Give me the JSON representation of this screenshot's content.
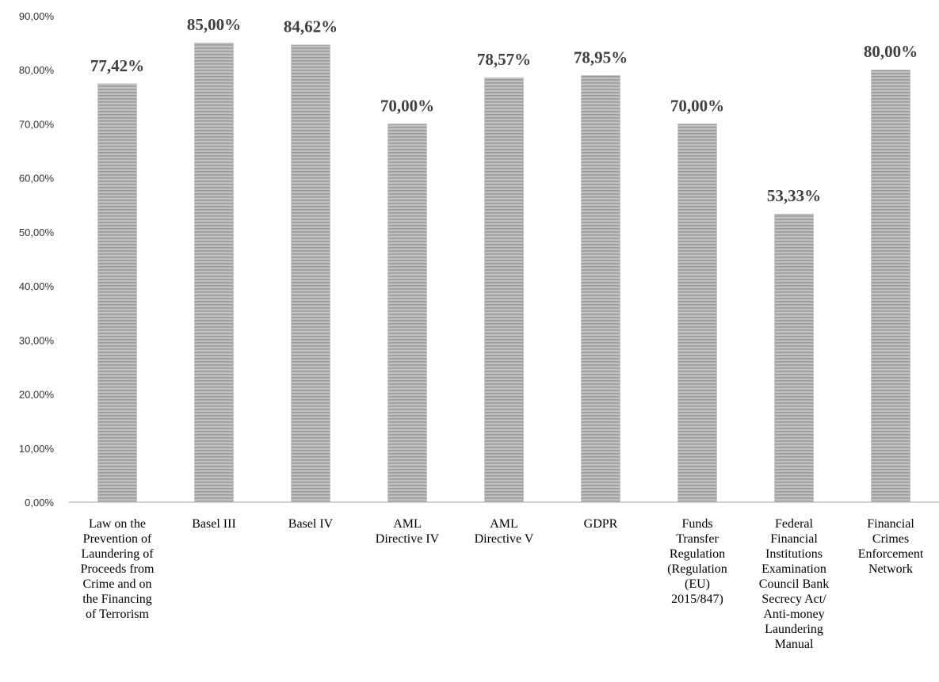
{
  "chart_data": {
    "type": "bar",
    "title": "",
    "xlabel": "",
    "ylabel": "",
    "ylim": [
      0,
      90
    ],
    "yticks": [
      "0,00%",
      "10,00%",
      "20,00%",
      "30,00%",
      "40,00%",
      "50,00%",
      "60,00%",
      "70,00%",
      "80,00%",
      "90,00%"
    ],
    "grid": false,
    "bar_color": "#c0c0c0",
    "bar_stripe_color": "#9a9a9a",
    "categories": [
      [
        "Law on the",
        "Prevention of",
        "Laundering of",
        "Proceeds from",
        "Crime and on",
        "the Financing",
        "of Terrorism"
      ],
      [
        "Basel III"
      ],
      [
        "Basel IV"
      ],
      [
        "AML",
        "Directive IV"
      ],
      [
        "AML",
        "Directive V"
      ],
      [
        "GDPR"
      ],
      [
        "Funds",
        "Transfer",
        "Regulation",
        "(Regulation",
        "(EU)",
        "2015/847)"
      ],
      [
        "Federal",
        "Financial",
        "Institutions",
        "Examination",
        "Council Bank",
        "Secrecy Act/",
        "Anti-money",
        "Laundering",
        "Manual"
      ],
      [
        "Financial",
        "Crimes",
        "Enforcement",
        "Network"
      ]
    ],
    "values": [
      77.42,
      85.0,
      84.62,
      70.0,
      78.57,
      78.95,
      70.0,
      53.33,
      80.0
    ],
    "data_labels": [
      "77,42%",
      "85,00%",
      "84,62%",
      "70,00%",
      "78,57%",
      "78,95%",
      "70,00%",
      "53,33%",
      "80,00%"
    ]
  }
}
